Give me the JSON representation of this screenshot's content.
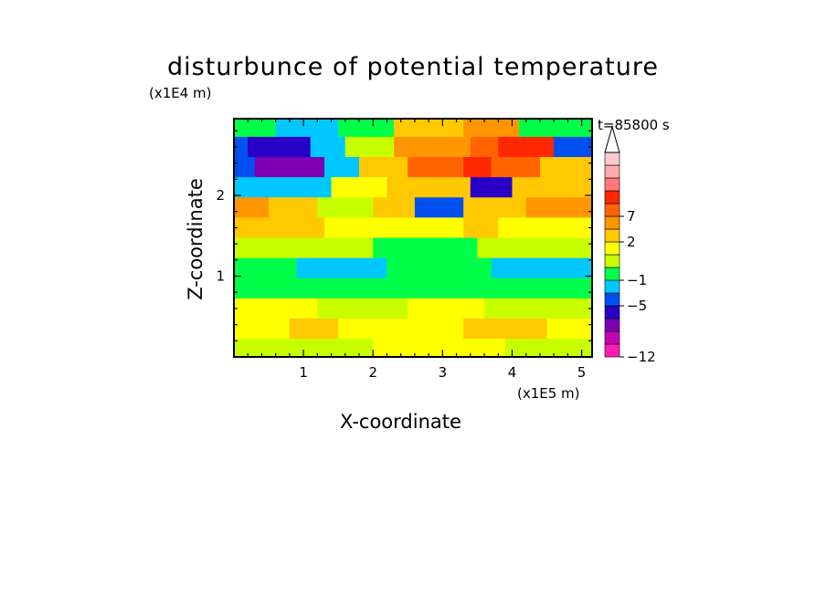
{
  "chart_data": {
    "type": "heatmap",
    "title": "disturbunce of potential temperature",
    "xlabel": "X-coordinate",
    "ylabel": "Z-coordinate",
    "x_unit": "(x1E5 m)",
    "y_unit": "(x1E4 m)",
    "annotation": "t=85800 s",
    "x_range": [
      0,
      5.15
    ],
    "y_range": [
      0,
      2.95
    ],
    "x_ticks": [
      "1",
      "2",
      "3",
      "4",
      "5"
    ],
    "y_ticks": [
      "1",
      "2"
    ],
    "colorbar": {
      "tick_labels": [
        "7",
        "2",
        "−1",
        "−5",
        "−12"
      ],
      "colors": [
        "#ff1cb4",
        "#c800b4",
        "#7d00b4",
        "#2800c8",
        "#0050f0",
        "#00c8ff",
        "#00ff48",
        "#c8ff00",
        "#ffff00",
        "#ffc800",
        "#ff9600",
        "#ff6400",
        "#ff2800",
        "#ff7878",
        "#ffaaaa",
        "#ffc8c8"
      ],
      "extend": "max"
    },
    "field_rows": [
      {
        "z": 2.85,
        "bands": [
          [
            0,
            0.6,
            "#00ff48"
          ],
          [
            0.6,
            1.5,
            "#00c8ff"
          ],
          [
            1.5,
            2.3,
            "#00ff48"
          ],
          [
            2.3,
            3.3,
            "#ffc800"
          ],
          [
            3.3,
            4.1,
            "#ff9600"
          ],
          [
            4.1,
            5.15,
            "#00ff48"
          ]
        ]
      },
      {
        "z": 2.6,
        "bands": [
          [
            0,
            0.2,
            "#0050f0"
          ],
          [
            0.2,
            1.1,
            "#2800c8"
          ],
          [
            1.1,
            1.6,
            "#00c8ff"
          ],
          [
            1.6,
            2.3,
            "#c8ff00"
          ],
          [
            2.3,
            3.4,
            "#ff9600"
          ],
          [
            3.4,
            3.8,
            "#ff6400"
          ],
          [
            3.8,
            4.6,
            "#ff2800"
          ],
          [
            4.6,
            5.15,
            "#0050f0"
          ]
        ]
      },
      {
        "z": 2.35,
        "bands": [
          [
            0,
            0.3,
            "#0050f0"
          ],
          [
            0.3,
            1.3,
            "#7d00b4"
          ],
          [
            1.3,
            1.8,
            "#00c8ff"
          ],
          [
            1.8,
            2.5,
            "#ffc800"
          ],
          [
            2.5,
            3.3,
            "#ff6400"
          ],
          [
            3.3,
            3.7,
            "#ff2800"
          ],
          [
            3.7,
            4.4,
            "#ff6400"
          ],
          [
            4.4,
            5.15,
            "#ffc800"
          ]
        ]
      },
      {
        "z": 2.1,
        "bands": [
          [
            0,
            1.4,
            "#00c8ff"
          ],
          [
            1.4,
            2.2,
            "#ffff00"
          ],
          [
            2.2,
            3.4,
            "#ffc800"
          ],
          [
            3.4,
            4.0,
            "#2800c8"
          ],
          [
            4.0,
            5.15,
            "#ffc800"
          ]
        ]
      },
      {
        "z": 1.85,
        "bands": [
          [
            0,
            0.5,
            "#ff9600"
          ],
          [
            0.5,
            1.2,
            "#ffc800"
          ],
          [
            1.2,
            2.0,
            "#c8ff00"
          ],
          [
            2.0,
            2.6,
            "#ffc800"
          ],
          [
            2.6,
            3.3,
            "#0050f0"
          ],
          [
            3.3,
            4.2,
            "#ffc800"
          ],
          [
            4.2,
            5.15,
            "#ff9600"
          ]
        ]
      },
      {
        "z": 1.6,
        "bands": [
          [
            0,
            1.3,
            "#ffc800"
          ],
          [
            1.3,
            2.2,
            "#ffff00"
          ],
          [
            2.2,
            3.3,
            "#ffff00"
          ],
          [
            3.3,
            3.8,
            "#ffc800"
          ],
          [
            3.8,
            5.15,
            "#ffff00"
          ]
        ]
      },
      {
        "z": 1.35,
        "bands": [
          [
            0,
            2.0,
            "#c8ff00"
          ],
          [
            2.0,
            3.5,
            "#00ff48"
          ],
          [
            3.5,
            5.15,
            "#c8ff00"
          ]
        ]
      },
      {
        "z": 1.1,
        "bands": [
          [
            0,
            0.9,
            "#00ff48"
          ],
          [
            0.9,
            2.2,
            "#00c8ff"
          ],
          [
            2.2,
            3.7,
            "#00ff48"
          ],
          [
            3.7,
            5.15,
            "#00c8ff"
          ]
        ]
      },
      {
        "z": 0.85,
        "bands": [
          [
            0,
            5.15,
            "#00ff48"
          ]
        ]
      },
      {
        "z": 0.6,
        "bands": [
          [
            0,
            1.2,
            "#ffff00"
          ],
          [
            1.2,
            2.5,
            "#c8ff00"
          ],
          [
            2.5,
            3.6,
            "#ffff00"
          ],
          [
            3.6,
            5.15,
            "#c8ff00"
          ]
        ]
      },
      {
        "z": 0.35,
        "bands": [
          [
            0,
            0.8,
            "#ffff00"
          ],
          [
            0.8,
            1.5,
            "#ffc800"
          ],
          [
            1.5,
            3.3,
            "#ffff00"
          ],
          [
            3.3,
            4.5,
            "#ffc800"
          ],
          [
            4.5,
            5.15,
            "#ffff00"
          ]
        ]
      },
      {
        "z": 0.1,
        "bands": [
          [
            0,
            2.0,
            "#c8ff00"
          ],
          [
            2.0,
            3.9,
            "#ffff00"
          ],
          [
            3.9,
            5.15,
            "#c8ff00"
          ]
        ]
      }
    ]
  }
}
